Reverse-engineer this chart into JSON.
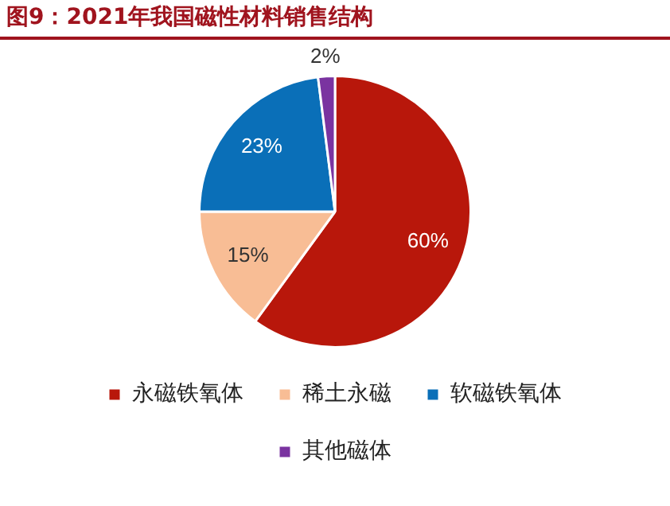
{
  "chart_data": {
    "type": "pie",
    "title": "图9：2021年我国磁性材料销售结构",
    "categories": [
      "永磁铁氧体",
      "稀土永磁",
      "软磁铁氧体",
      "其他磁体"
    ],
    "values": [
      60,
      15,
      23,
      2
    ],
    "colors": [
      "#b8170b",
      "#f8bd95",
      "#0a6fb8",
      "#7a33a0"
    ],
    "value_labels": [
      "60%",
      "15%",
      "23%",
      "2%"
    ],
    "legend": "bottom"
  }
}
